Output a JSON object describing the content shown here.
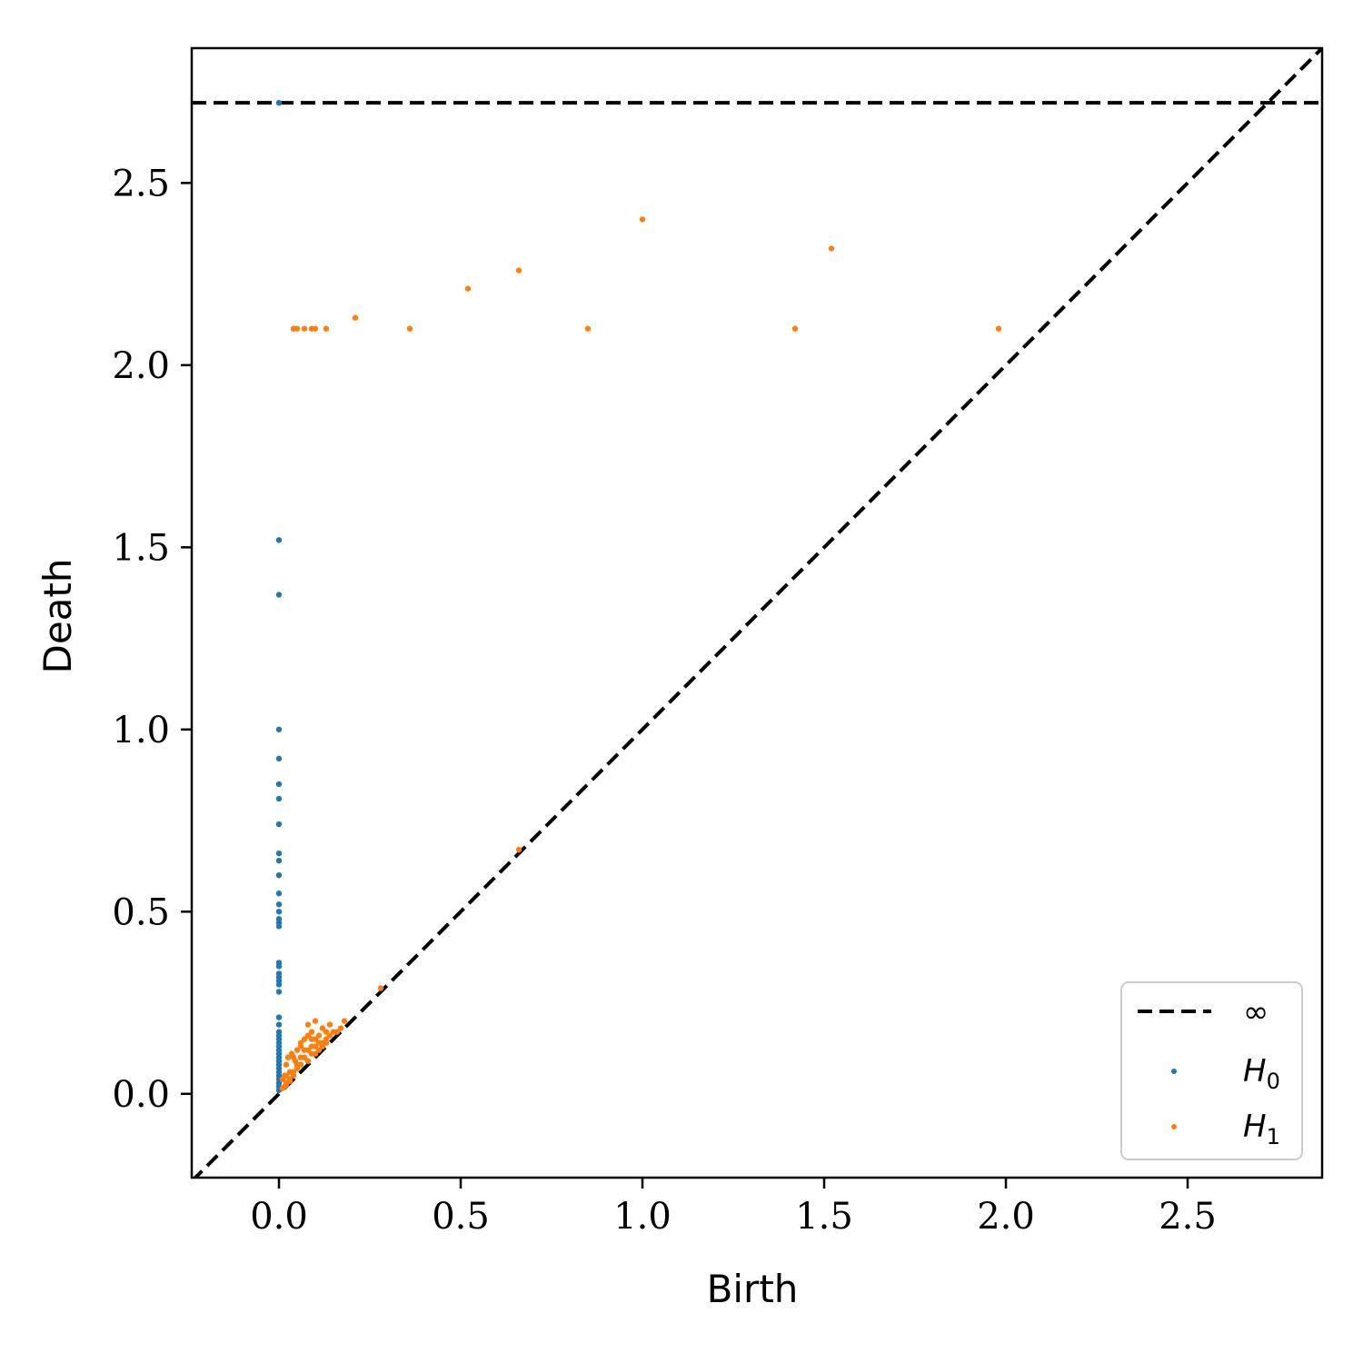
{
  "chart_data": {
    "type": "scatter",
    "title": "",
    "xlabel": "Birth",
    "ylabel": "Death",
    "xlim": [
      -0.24,
      2.87
    ],
    "ylim": [
      -0.23,
      2.87
    ],
    "xticks": [
      0.0,
      0.5,
      1.0,
      1.5,
      2.0,
      2.5
    ],
    "yticks": [
      0.0,
      0.5,
      1.0,
      1.5,
      2.0,
      2.5
    ],
    "xtick_labels": [
      "0.0",
      "0.5",
      "1.0",
      "1.5",
      "2.0",
      "2.5"
    ],
    "ytick_labels": [
      "0.0",
      "0.5",
      "1.0",
      "1.5",
      "2.0",
      "2.5"
    ],
    "grid": false,
    "infinity_line": 2.72,
    "diagonal": true,
    "legend": {
      "position": "lower-right",
      "entries": [
        {
          "label": "∞",
          "style": "dashed-line",
          "color": "#000000"
        },
        {
          "label_main": "H",
          "label_sub": "0",
          "style": "marker",
          "color": "#1f77b4"
        },
        {
          "label_main": "H",
          "label_sub": "1",
          "style": "marker",
          "color": "#ff7f0e"
        }
      ]
    },
    "series": [
      {
        "color": "#1f77b4",
        "points": [
          [
            0,
            2.72
          ],
          [
            0,
            1.52
          ],
          [
            0,
            1.37
          ],
          [
            0,
            1.0
          ],
          [
            0,
            0.92
          ],
          [
            0,
            0.85
          ],
          [
            0,
            0.81
          ],
          [
            0,
            0.74
          ],
          [
            0,
            0.66
          ],
          [
            0,
            0.64
          ],
          [
            0,
            0.6
          ],
          [
            0,
            0.55
          ],
          [
            0,
            0.52
          ],
          [
            0,
            0.5
          ],
          [
            0,
            0.48
          ],
          [
            0,
            0.47
          ],
          [
            0,
            0.46
          ],
          [
            0,
            0.36
          ],
          [
            0,
            0.35
          ],
          [
            0,
            0.33
          ],
          [
            0,
            0.32
          ],
          [
            0,
            0.31
          ],
          [
            0,
            0.3
          ],
          [
            0,
            0.28
          ],
          [
            0,
            0.21
          ],
          [
            0,
            0.19
          ],
          [
            0,
            0.17
          ],
          [
            0,
            0.16
          ],
          [
            0,
            0.15
          ],
          [
            0,
            0.14
          ],
          [
            0,
            0.13
          ],
          [
            0,
            0.12
          ],
          [
            0,
            0.11
          ],
          [
            0,
            0.1
          ],
          [
            0,
            0.09
          ],
          [
            0,
            0.08
          ],
          [
            0,
            0.07
          ],
          [
            0,
            0.06
          ],
          [
            0,
            0.05
          ],
          [
            0,
            0.04
          ],
          [
            0,
            0.03
          ],
          [
            0,
            0.02
          ],
          [
            0,
            0.01
          ]
        ]
      },
      {
        "color": "#ff7f0e",
        "points": [
          [
            1.0,
            2.4
          ],
          [
            1.52,
            2.32
          ],
          [
            0.66,
            2.26
          ],
          [
            0.52,
            2.21
          ],
          [
            0.21,
            2.13
          ],
          [
            0.04,
            2.1
          ],
          [
            0.05,
            2.1
          ],
          [
            0.07,
            2.1
          ],
          [
            0.09,
            2.1
          ],
          [
            0.1,
            2.1
          ],
          [
            0.13,
            2.1
          ],
          [
            0.36,
            2.1
          ],
          [
            0.85,
            2.1
          ],
          [
            1.42,
            2.1
          ],
          [
            1.98,
            2.1
          ],
          [
            0.28,
            0.29
          ],
          [
            0.66,
            0.67
          ],
          [
            0.18,
            0.2
          ],
          [
            0.1,
            0.2
          ],
          [
            0.12,
            0.18
          ],
          [
            0.09,
            0.17
          ],
          [
            0.11,
            0.16
          ],
          [
            0.07,
            0.15
          ],
          [
            0.13,
            0.17
          ],
          [
            0.08,
            0.19
          ],
          [
            0.06,
            0.14
          ],
          [
            0.05,
            0.12
          ],
          [
            0.04,
            0.1
          ],
          [
            0.02,
            0.08
          ],
          [
            0.03,
            0.06
          ],
          [
            0.01,
            0.04
          ],
          [
            0.02,
            0.03
          ],
          [
            0.015,
            0.05
          ],
          [
            0.025,
            0.1
          ],
          [
            0.035,
            0.11
          ],
          [
            0.045,
            0.09
          ],
          [
            0.06,
            0.08
          ],
          [
            0.07,
            0.1
          ],
          [
            0.08,
            0.12
          ],
          [
            0.09,
            0.11
          ],
          [
            0.1,
            0.13
          ],
          [
            0.11,
            0.12
          ],
          [
            0.12,
            0.14
          ],
          [
            0.13,
            0.15
          ],
          [
            0.14,
            0.16
          ],
          [
            0.15,
            0.17
          ],
          [
            0.16,
            0.17
          ],
          [
            0.14,
            0.19
          ],
          [
            0.1,
            0.15
          ],
          [
            0.09,
            0.13
          ],
          [
            0.07,
            0.12
          ],
          [
            0.05,
            0.08
          ],
          [
            0.06,
            0.1
          ],
          [
            0.03,
            0.04
          ],
          [
            0.04,
            0.06
          ],
          [
            0.05,
            0.07
          ],
          [
            0.08,
            0.09
          ],
          [
            0.1,
            0.11
          ],
          [
            0.12,
            0.13
          ],
          [
            0.11,
            0.14
          ],
          [
            0.13,
            0.14
          ],
          [
            0.015,
            0.02
          ],
          [
            0.02,
            0.025
          ],
          [
            0.03,
            0.035
          ],
          [
            0.17,
            0.18
          ],
          [
            0.09,
            0.15
          ],
          [
            0.08,
            0.16
          ],
          [
            0.06,
            0.13
          ],
          [
            0.04,
            0.05
          ],
          [
            0.02,
            0.05
          ],
          [
            0.01,
            0.015
          ]
        ]
      }
    ]
  }
}
